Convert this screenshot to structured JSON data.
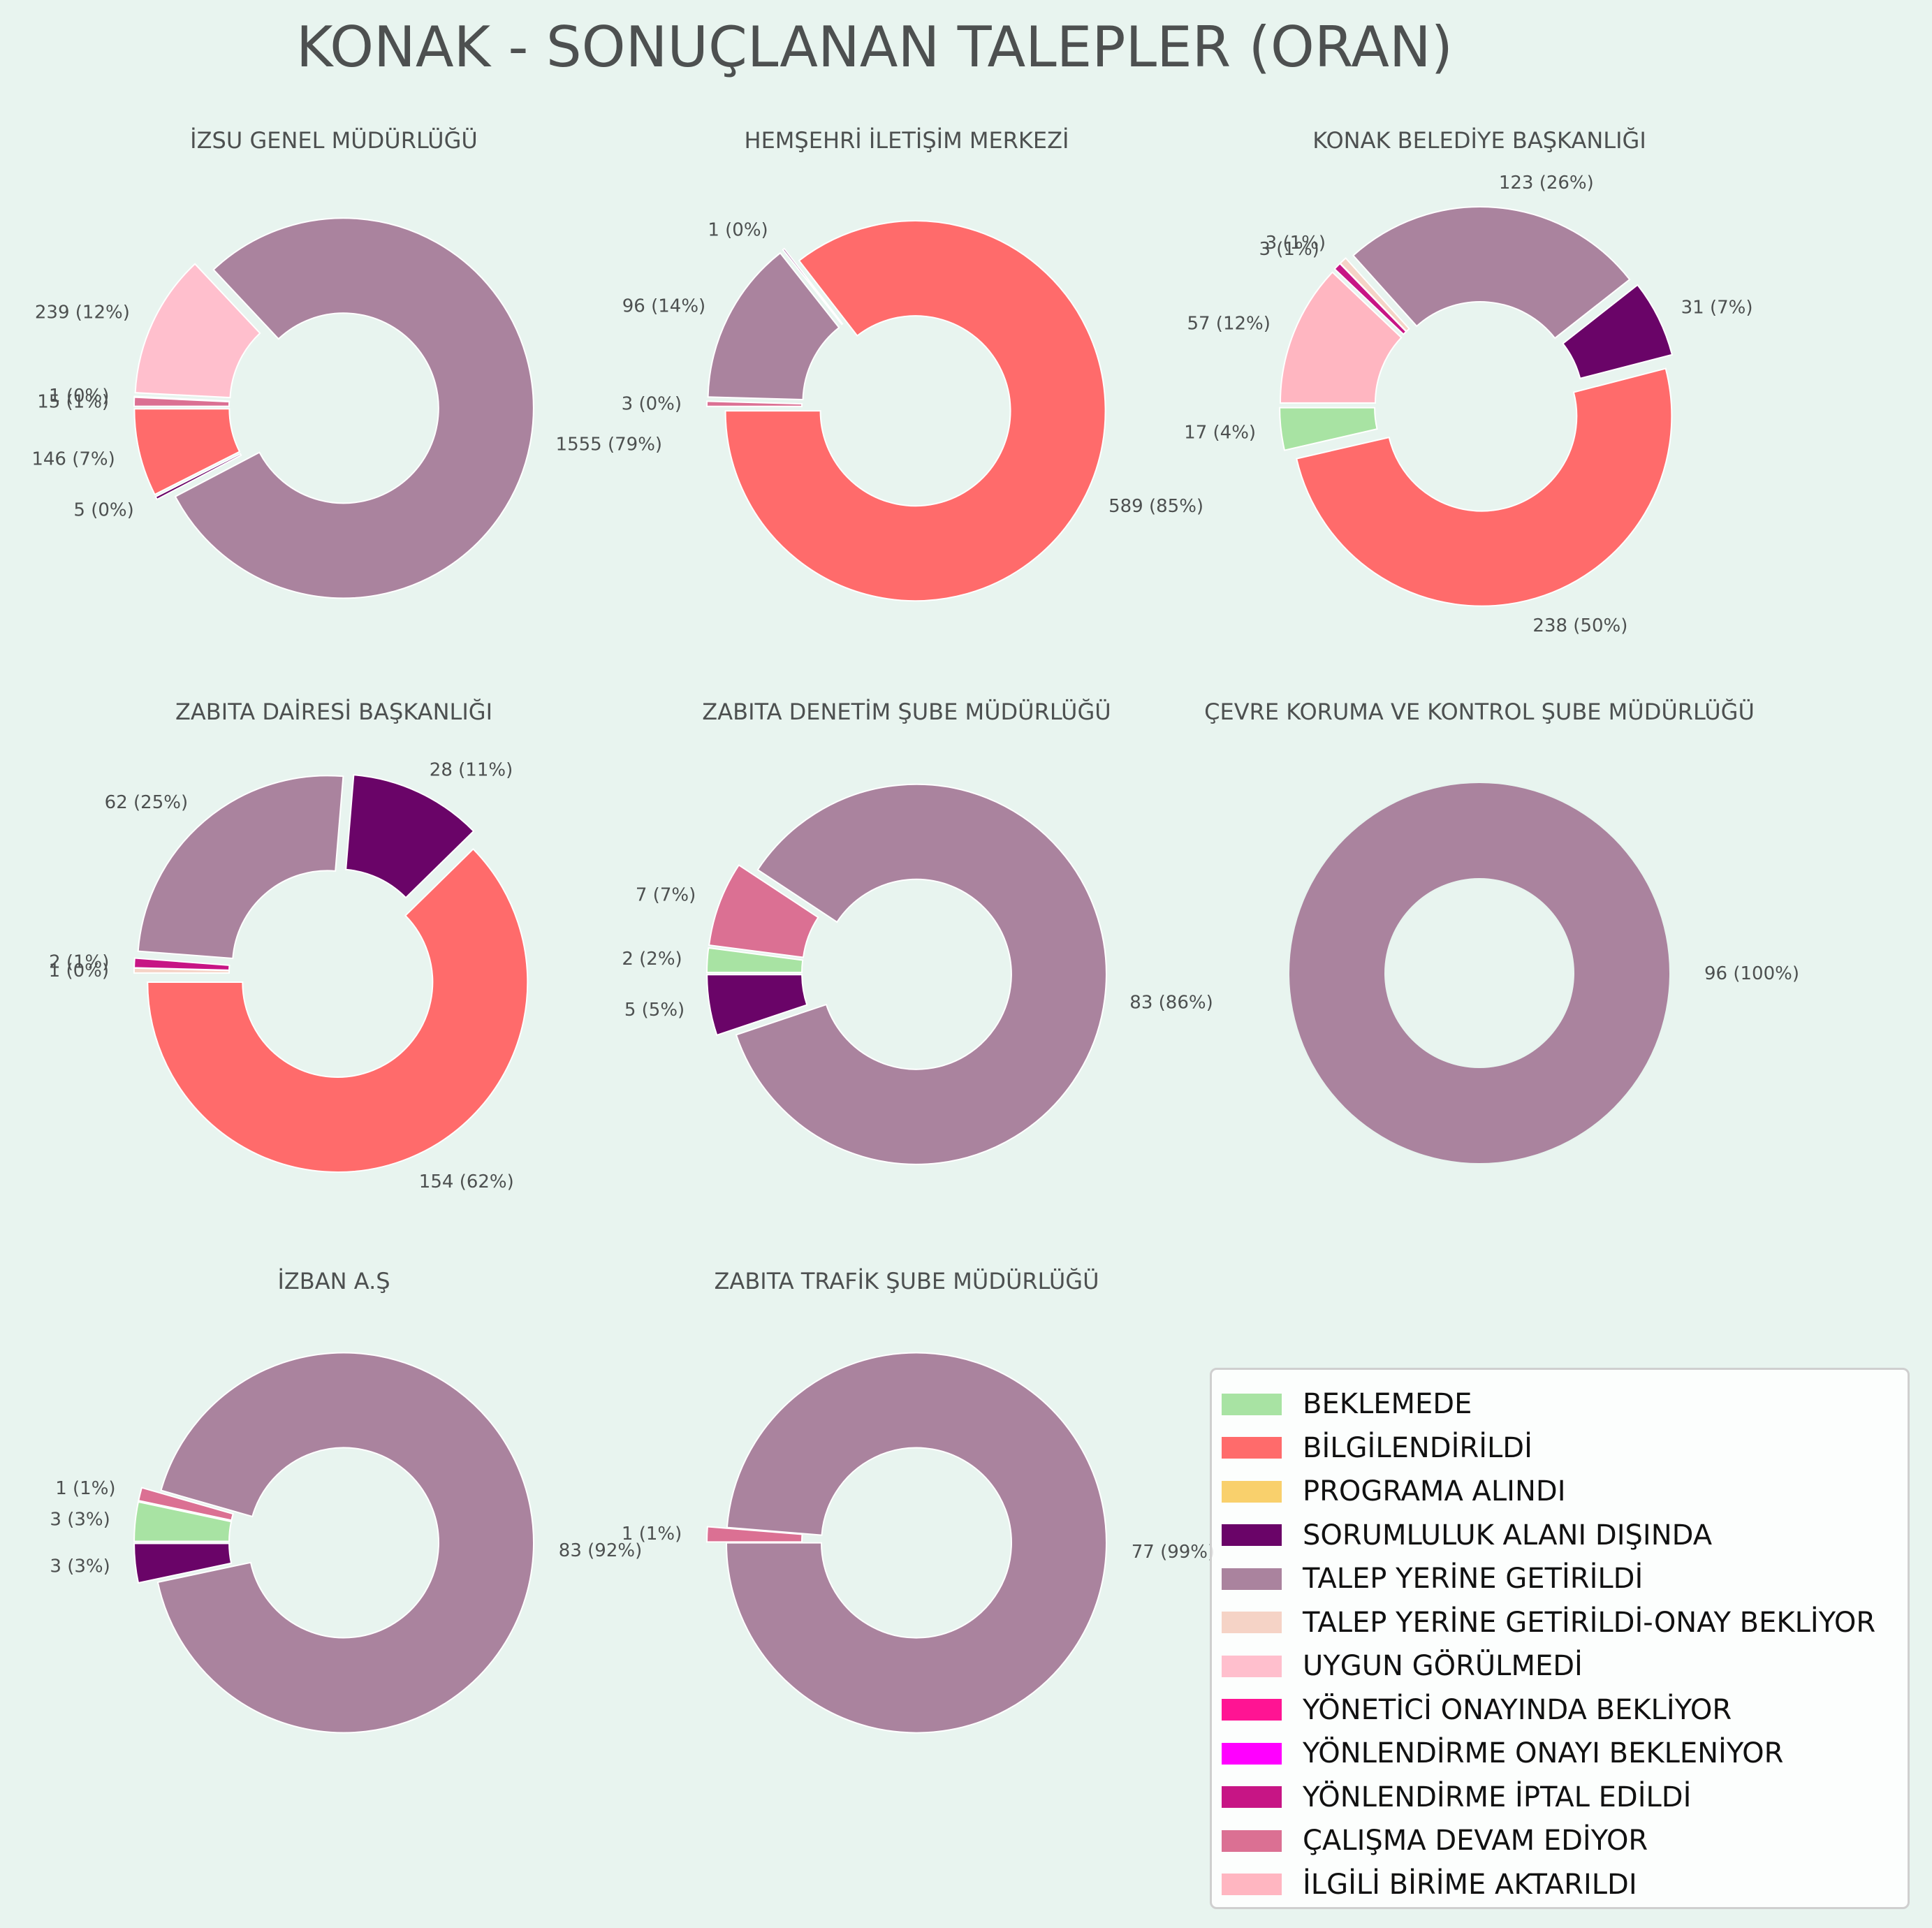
{
  "title": "KONAK - SONUÇLANAN TALEPLER (ORAN)",
  "categories": [
    {
      "name": "BEKLEMEDE",
      "color": "#a8e3a3"
    },
    {
      "name": "BİLGİLENDİRİLDİ",
      "color": "#ff6b6b"
    },
    {
      "name": "PROGRAMA ALINDI",
      "color": "#f9d06c"
    },
    {
      "name": "SORUMLULUK ALANI DIŞINDA",
      "color": "#6a0468"
    },
    {
      "name": "TALEP YERİNE GETİRİLDİ",
      "color": "#aa839e"
    },
    {
      "name": "TALEP YERİNE GETİRİLDİ-ONAY BEKLİYOR",
      "color": "#f5d3c6"
    },
    {
      "name": "UYGUN GÖRÜLMEDİ",
      "color": "#ffbfcd"
    },
    {
      "name": "YÖNETİCİ ONAYINDA BEKLİYOR",
      "color": "#ff1493"
    },
    {
      "name": "YÖNLENDİRME ONAYI BEKLENİYOR",
      "color": "#ff00ff"
    },
    {
      "name": "YÖNLENDİRME İPTAL EDİLDİ",
      "color": "#c71585"
    },
    {
      "name": "ÇALIŞMA DEVAM EDİYOR",
      "color": "#db7093"
    },
    {
      "name": "İLGİLİ BİRİME AKTARILDI",
      "color": "#ffb6c1"
    }
  ],
  "chart_data": [
    {
      "type": "pie",
      "title": "İZSU GENEL MÜDÜRLÜĞÜ",
      "slices": [
        {
          "category": "BİLGİLENDİRİLDİ",
          "value": 146,
          "label": "146 (7%)"
        },
        {
          "category": "SORUMLULUK ALANI DIŞINDA",
          "value": 5,
          "label": "5 (0%)"
        },
        {
          "category": "TALEP YERİNE GETİRİLDİ",
          "value": 1555,
          "label": "1555 (79%)"
        },
        {
          "category": "UYGUN GÖRÜLMEDİ",
          "value": 239,
          "label": "239 (12%)"
        },
        {
          "category": "YÖNLENDİRME İPTAL EDİLDİ",
          "value": 1,
          "label": "1 (0%)"
        },
        {
          "category": "ÇALIŞMA DEVAM EDİYOR",
          "value": 15,
          "label": "15 (1%)"
        }
      ]
    },
    {
      "type": "pie",
      "title": "HEMŞEHRİ İLETİŞİM MERKEZİ",
      "slices": [
        {
          "category": "BİLGİLENDİRİLDİ",
          "value": 589,
          "label": "589 (85%)"
        },
        {
          "category": "SORUMLULUK ALANI DIŞINDA",
          "value": 1,
          "label": "1 (0%)"
        },
        {
          "category": "TALEP YERİNE GETİRİLDİ",
          "value": 96,
          "label": "96 (14%)"
        },
        {
          "category": "ÇALIŞMA DEVAM EDİYOR",
          "value": 3,
          "label": "3 (0%)"
        }
      ]
    },
    {
      "type": "pie",
      "title": "KONAK BELEDİYE BAŞKANLIĞI",
      "slices": [
        {
          "category": "BEKLEMEDE",
          "value": 17,
          "label": "17 (4%)"
        },
        {
          "category": "BİLGİLENDİRİLDİ",
          "value": 238,
          "label": "238 (50%)"
        },
        {
          "category": "SORUMLULUK ALANI DIŞINDA",
          "value": 31,
          "label": "31 (7%)"
        },
        {
          "category": "TALEP YERİNE GETİRİLDİ",
          "value": 123,
          "label": "123 (26%)"
        },
        {
          "category": "TALEP YERİNE GETİRİLDİ-ONAY BEKLİYOR",
          "value": 3,
          "label": "3 (1%)"
        },
        {
          "category": "YÖNLENDİRME İPTAL EDİLDİ",
          "value": 3,
          "label": "3 (1%)"
        },
        {
          "category": "İLGİLİ BİRİME AKTARILDI",
          "value": 57,
          "label": "57 (12%)"
        }
      ]
    },
    {
      "type": "pie",
      "title": "ZABITA DAİRESİ BAŞKANLIĞI",
      "slices": [
        {
          "category": "BİLGİLENDİRİLDİ",
          "value": 154,
          "label": "154 (62%)"
        },
        {
          "category": "SORUMLULUK ALANI DIŞINDA",
          "value": 28,
          "label": "28 (11%)"
        },
        {
          "category": "TALEP YERİNE GETİRİLDİ",
          "value": 62,
          "label": "62 (25%)"
        },
        {
          "category": "YÖNLENDİRME İPTAL EDİLDİ",
          "value": 2,
          "label": "2 (1%)"
        },
        {
          "category": "TALEP YERİNE GETİRİLDİ-ONAY BEKLİYOR",
          "value": 1,
          "label": "1 (0%)"
        }
      ]
    },
    {
      "type": "pie",
      "title": "ZABITA DENETİM ŞUBE MÜDÜRLÜĞÜ",
      "slices": [
        {
          "category": "SORUMLULUK ALANI DIŞINDA",
          "value": 5,
          "label": "5 (5%)"
        },
        {
          "category": "TALEP YERİNE GETİRİLDİ",
          "value": 83,
          "label": "83 (86%)"
        },
        {
          "category": "ÇALIŞMA DEVAM EDİYOR",
          "value": 7,
          "label": "7 (7%)"
        },
        {
          "category": "BEKLEMEDE",
          "value": 2,
          "label": "2 (2%)"
        }
      ]
    },
    {
      "type": "pie",
      "title": "ÇEVRE KORUMA VE KONTROL ŞUBE MÜDÜRLÜĞÜ",
      "slices": [
        {
          "category": "TALEP YERİNE GETİRİLDİ",
          "value": 96,
          "label": "96 (100%)"
        }
      ]
    },
    {
      "type": "pie",
      "title": "İZBAN A.Ş",
      "slices": [
        {
          "category": "SORUMLULUK ALANI DIŞINDA",
          "value": 3,
          "label": "3 (3%)"
        },
        {
          "category": "TALEP YERİNE GETİRİLDİ",
          "value": 83,
          "label": "83 (92%)"
        },
        {
          "category": "ÇALIŞMA DEVAM EDİYOR",
          "value": 1,
          "label": "1 (1%)"
        },
        {
          "category": "BEKLEMEDE",
          "value": 3,
          "label": "3 (3%)"
        }
      ]
    },
    {
      "type": "pie",
      "title": "ZABITA TRAFİK ŞUBE MÜDÜRLÜĞÜ",
      "slices": [
        {
          "category": "TALEP YERİNE GETİRİLDİ",
          "value": 77,
          "label": "77 (99%)"
        },
        {
          "category": "ÇALIŞMA DEVAM EDİYOR",
          "value": 1,
          "label": "1 (1%)"
        }
      ]
    }
  ]
}
